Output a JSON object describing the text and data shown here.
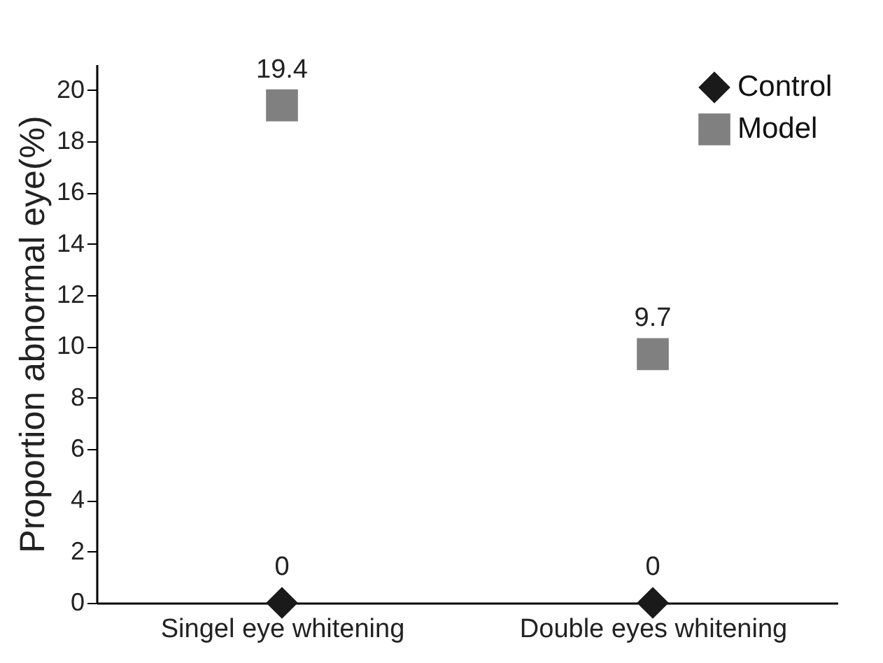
{
  "chart_data": {
    "type": "scatter",
    "ylabel": "Proportion abnormal eye(%)",
    "categories": [
      "Singel eye whitening",
      "Double eyes whitening"
    ],
    "series": [
      {
        "name": "Control",
        "color": "#1a1a1a",
        "marker": "diamond",
        "values": [
          0,
          0
        ]
      },
      {
        "name": "Model",
        "color": "#808080",
        "marker": "square",
        "values": [
          19.4,
          9.7
        ]
      }
    ],
    "ylim": [
      0,
      21
    ],
    "yticks": [
      0,
      2,
      4,
      6,
      8,
      10,
      12,
      14,
      16,
      18,
      20
    ],
    "data_labels": true,
    "legend": "top right",
    "grid": false
  }
}
